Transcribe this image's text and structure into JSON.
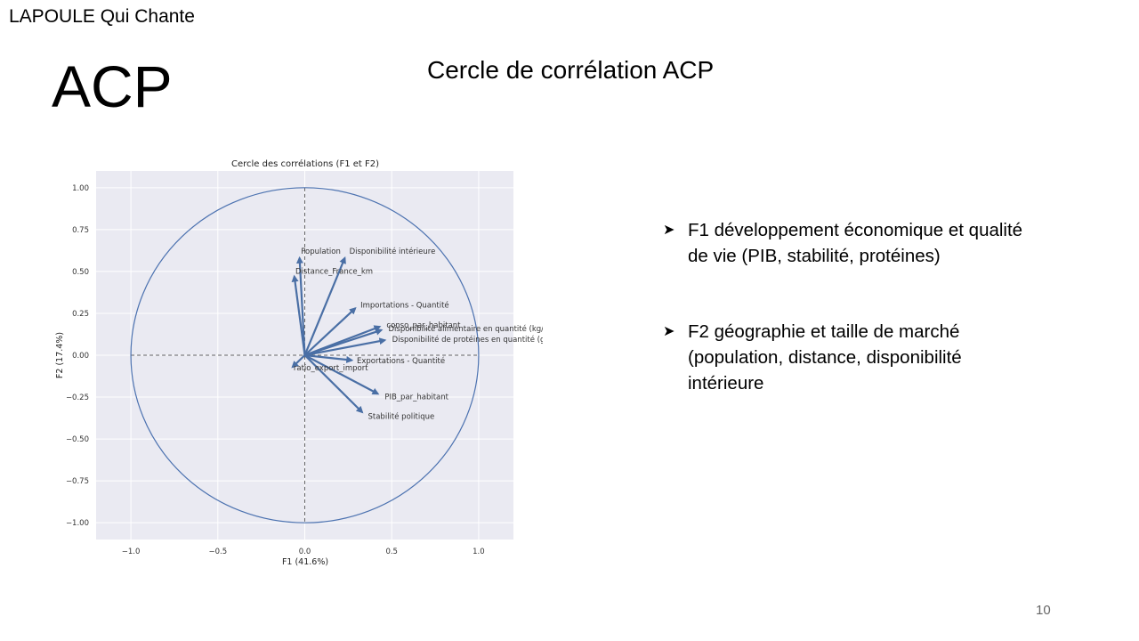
{
  "slide": {
    "header": "LAPOULE Qui Chante",
    "title": "ACP",
    "chart_heading": "Cercle de corrélation ACP",
    "page_number": "10",
    "bullets": [
      "F1  développement économique et qualité de vie (PIB, stabilité, protéines)",
      "F2 géographie et taille de marché (population, distance, disponibilité intérieure"
    ]
  },
  "chart_data": {
    "type": "scatter",
    "subtype": "correlation-circle",
    "title": "Cercle des corrélations (F1 et F2)",
    "xlabel": "F1 (41.6%)",
    "ylabel": "F2 (17.4%)",
    "xlim": [
      -1.2,
      1.2
    ],
    "ylim": [
      -1.1,
      1.1
    ],
    "xticks": [
      -1.0,
      -0.5,
      0.0,
      0.5,
      1.0
    ],
    "xtick_labels": [
      "−1.0",
      "−0.5",
      "0.0",
      "0.5",
      "1.0"
    ],
    "yticks": [
      1.0,
      0.75,
      0.5,
      0.25,
      0.0,
      -0.25,
      -0.5,
      -0.75,
      -1.0
    ],
    "ytick_labels": [
      "1.00",
      "0.75",
      "0.50",
      "0.25",
      "0.00",
      "−0.25",
      "−0.50",
      "−0.75",
      "−1.00"
    ],
    "grid": true,
    "circle_radius": 1.0,
    "colors": {
      "arrow": "#4a6fa5",
      "circle": "#4c72b0",
      "plot_bg": "#eaeaf2",
      "grid": "#ffffff"
    },
    "vectors": [
      {
        "name": "Population",
        "x": -0.03,
        "y": 0.58
      },
      {
        "name": "Disponibilité intérieure",
        "x": 0.23,
        "y": 0.58
      },
      {
        "name": "Distance_France_km",
        "x": -0.06,
        "y": 0.47
      },
      {
        "name": "Importations - Quantité",
        "x": 0.29,
        "y": 0.28
      },
      {
        "name": "conso_par_habitant",
        "x": 0.43,
        "y": 0.17
      },
      {
        "name": "Disponibilité alimentaire en quantité (kg/personne/an)",
        "x": 0.44,
        "y": 0.15
      },
      {
        "name": "Disponibilité de protéines en quantité (g/personne/jour)",
        "x": 0.46,
        "y": 0.09
      },
      {
        "name": "Exportations - Quantité",
        "x": 0.27,
        "y": -0.03
      },
      {
        "name": "ratio_export_import",
        "x": -0.07,
        "y": -0.07
      },
      {
        "name": "PIB_par_habitant",
        "x": 0.42,
        "y": -0.23
      },
      {
        "name": "Stabilité politique",
        "x": 0.33,
        "y": -0.34
      }
    ]
  }
}
